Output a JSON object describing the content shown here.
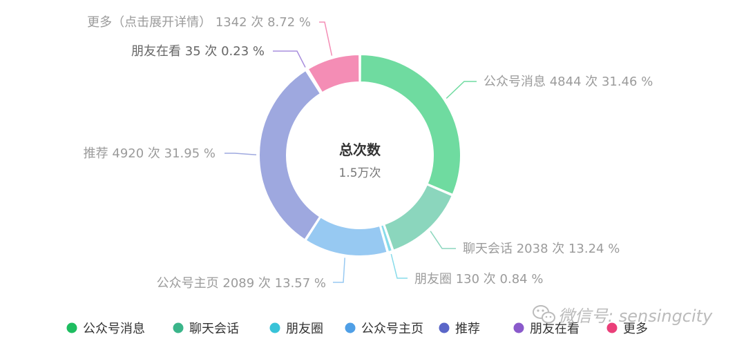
{
  "chart_data": {
    "type": "pie",
    "donut": true,
    "center_title": "总次数",
    "center_value": "1.5万次",
    "unit": "次",
    "series": [
      {
        "name": "公众号消息",
        "value": 4844,
        "percent": "31.46 %",
        "color": "#6fdba0",
        "legend_color": "#1ebd60"
      },
      {
        "name": "聊天会话",
        "value": 2038,
        "percent": "13.24 %",
        "color": "#8bd6bd",
        "legend_color": "#3bb58a"
      },
      {
        "name": "朋友圈",
        "value": 130,
        "percent": "0.84 %",
        "color": "#86dbea",
        "legend_color": "#38c3d8"
      },
      {
        "name": "公众号主页",
        "value": 2089,
        "percent": "13.57 %",
        "color": "#97c9f2",
        "legend_color": "#4f9fe6"
      },
      {
        "name": "推荐",
        "value": 4920,
        "percent": "31.95 %",
        "color": "#9ea8df",
        "legend_color": "#5a66c8"
      },
      {
        "name": "朋友在看",
        "value": 35,
        "percent": "0.23 %",
        "color": "#a88ddd",
        "legend_color": "#8a5acb"
      },
      {
        "name": "更多（点击展开详情）",
        "legend_name": "更多",
        "value": 1342,
        "percent": "8.72 %",
        "color": "#f48db5",
        "legend_color": "#ea3f79"
      }
    ],
    "legend_position": "bottom"
  },
  "watermark": {
    "icon": "wechat-icon",
    "text": "微信号: sensingcity"
  }
}
